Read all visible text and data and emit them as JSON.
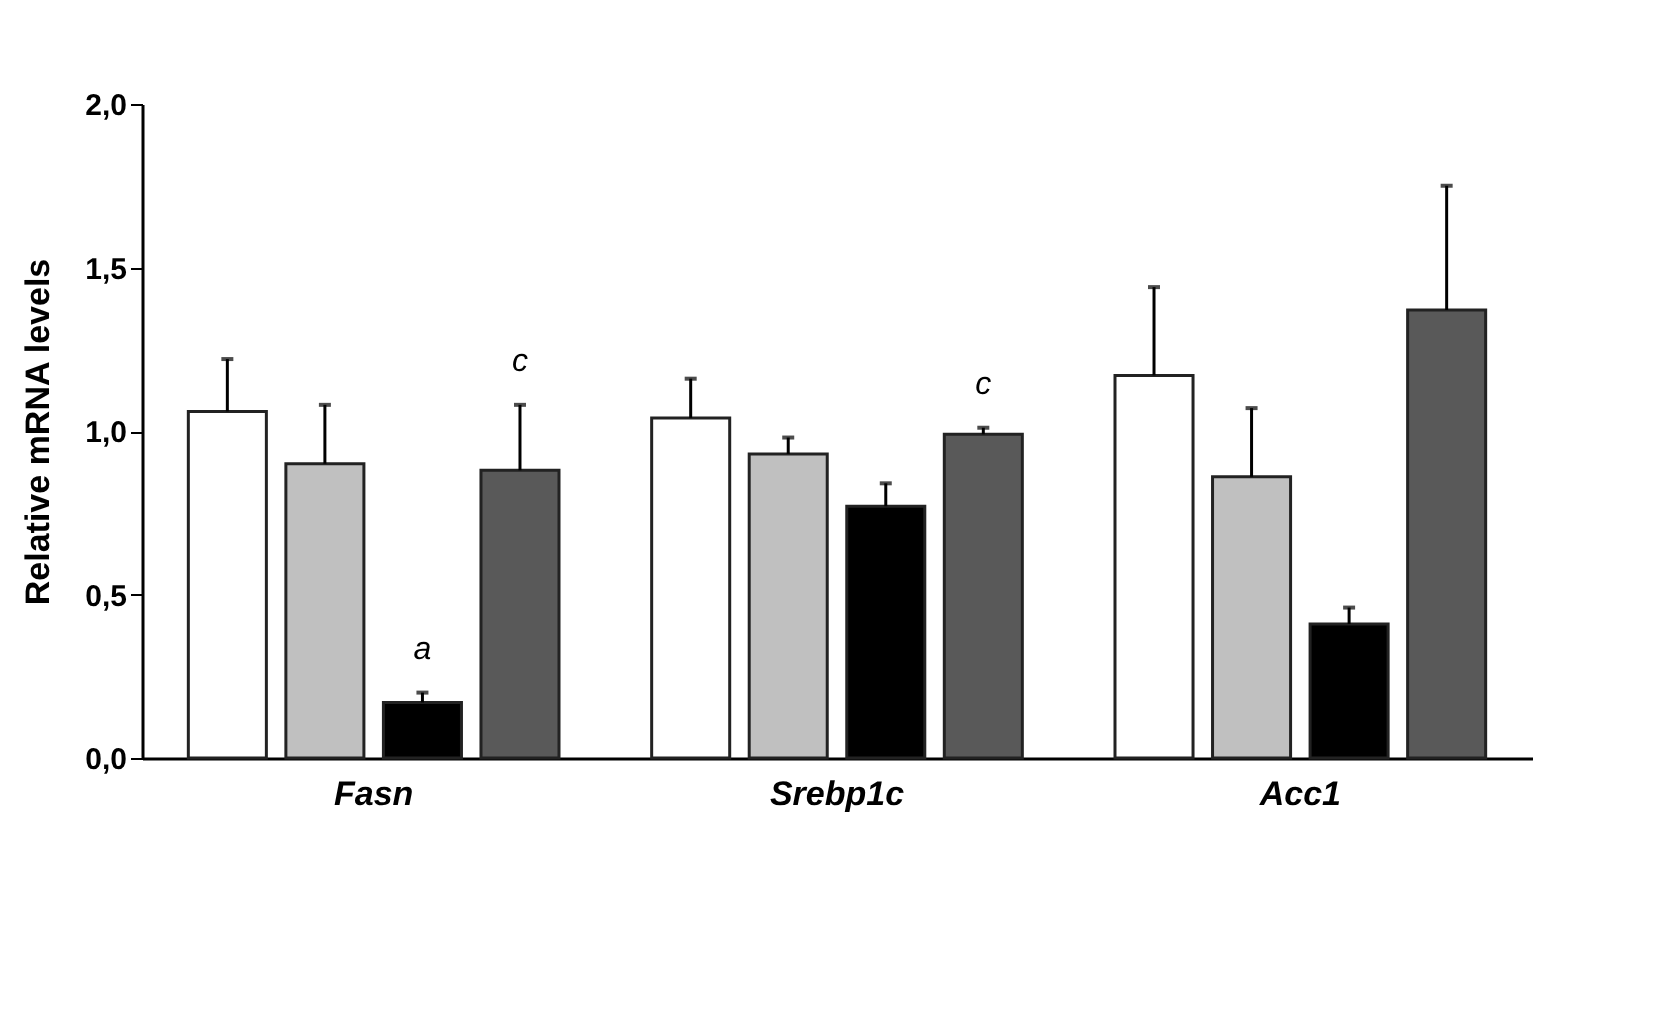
{
  "chart_data": {
    "type": "bar",
    "ylabel": "Relative mRNA levels",
    "categories": [
      "Fasn",
      "Srebp1c",
      "Acc1"
    ],
    "series": [
      {
        "color": "#ffffff",
        "values": [
          1.06,
          1.04,
          1.17
        ],
        "errors": [
          [
            1.06,
            1.22
          ],
          [
            1.04,
            1.16
          ],
          [
            1.17,
            1.44
          ]
        ]
      },
      {
        "color": "#c0c0c0",
        "values": [
          0.9,
          0.93,
          0.86
        ],
        "errors": [
          [
            0.9,
            1.08
          ],
          [
            0.93,
            0.98
          ],
          [
            0.86,
            1.07
          ]
        ]
      },
      {
        "color": "#000000",
        "values": [
          0.17,
          0.77,
          0.41
        ],
        "errors": [
          [
            0.17,
            0.2
          ],
          [
            0.77,
            0.84
          ],
          [
            0.41,
            0.46
          ]
        ],
        "value_labels": [
          "a",
          null,
          null
        ]
      },
      {
        "color": "#595959",
        "values": [
          0.88,
          0.99,
          1.37
        ],
        "errors": [
          [
            0.88,
            1.08
          ],
          [
            0.99,
            1.01
          ],
          [
            1.37,
            1.75
          ]
        ],
        "value_labels": [
          "c",
          "c",
          null
        ]
      }
    ],
    "ylim": [
      0,
      2
    ],
    "yticks": [
      {
        "value": 0,
        "label": "0,0"
      },
      {
        "value": 0.5,
        "label": "0,5"
      },
      {
        "value": 1,
        "label": "1,0"
      },
      {
        "value": 1.5,
        "label": "1,5"
      },
      {
        "value": 2,
        "label": "2,0"
      }
    ],
    "grid": false,
    "legend": false
  }
}
